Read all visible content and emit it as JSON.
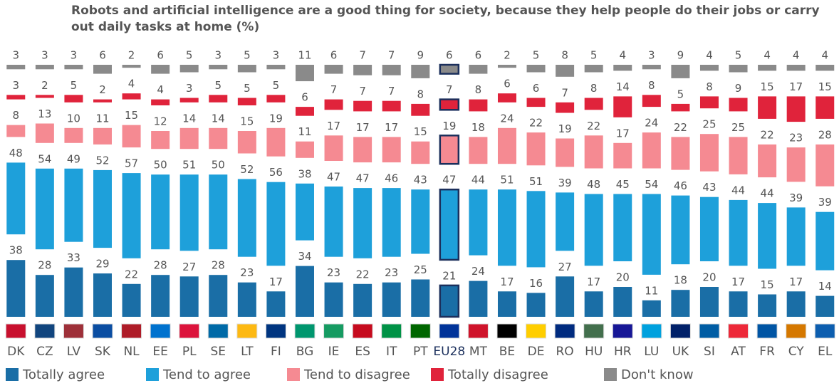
{
  "chart_data": {
    "type": "bar",
    "stacked": true,
    "title": "Robots and artificial intelligence are a good thing for society, because they help people do their jobs or carry out daily tasks at home (%)",
    "categories": [
      "DK",
      "CZ",
      "LV",
      "SK",
      "NL",
      "EE",
      "PL",
      "SE",
      "LT",
      "FI",
      "BG",
      "IE",
      "ES",
      "IT",
      "PT",
      "EU28",
      "MT",
      "BE",
      "DE",
      "RO",
      "HU",
      "HR",
      "LU",
      "UK",
      "SI",
      "AT",
      "FR",
      "CY",
      "EL"
    ],
    "highlight": "EU28",
    "series": [
      {
        "name": "Totally agree",
        "color": "#1a6ea6",
        "values": [
          38,
          28,
          33,
          29,
          22,
          28,
          27,
          28,
          23,
          17,
          34,
          23,
          22,
          23,
          25,
          21,
          24,
          17,
          16,
          27,
          17,
          20,
          11,
          18,
          20,
          17,
          15,
          17,
          14
        ]
      },
      {
        "name": "Tend to agree",
        "color": "#1ea0da",
        "values": [
          48,
          54,
          49,
          52,
          57,
          50,
          51,
          50,
          52,
          56,
          38,
          47,
          47,
          46,
          43,
          47,
          44,
          51,
          51,
          39,
          48,
          45,
          54,
          46,
          43,
          44,
          44,
          39,
          39
        ]
      },
      {
        "name": "Tend to disagree",
        "color": "#f58a92",
        "values": [
          8,
          13,
          10,
          11,
          15,
          12,
          14,
          14,
          15,
          19,
          11,
          17,
          17,
          17,
          15,
          19,
          18,
          24,
          22,
          19,
          22,
          17,
          24,
          22,
          25,
          25,
          22,
          23,
          28
        ]
      },
      {
        "name": "Totally disagree",
        "color": "#e0233b",
        "values": [
          3,
          2,
          5,
          2,
          4,
          4,
          3,
          5,
          5,
          5,
          6,
          7,
          7,
          7,
          8,
          7,
          8,
          6,
          6,
          7,
          8,
          14,
          8,
          5,
          8,
          9,
          15,
          17,
          15
        ]
      },
      {
        "name": "Don't know",
        "color": "#8a8a8a",
        "values": [
          3,
          3,
          3,
          6,
          2,
          6,
          5,
          3,
          5,
          3,
          11,
          6,
          7,
          7,
          9,
          6,
          6,
          2,
          5,
          8,
          5,
          4,
          3,
          9,
          4,
          5,
          4,
          4,
          4
        ]
      }
    ]
  }
}
